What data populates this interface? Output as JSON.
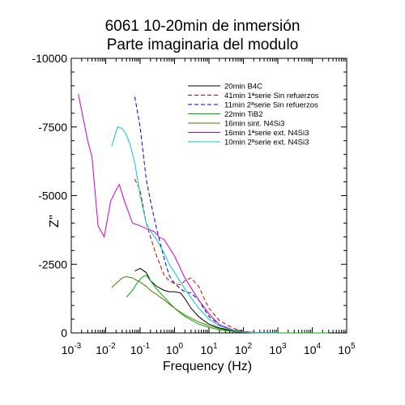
{
  "chart_data": {
    "type": "line",
    "title": "6061 10-20min de inmersión",
    "subtitle": "Parte imaginaria del modulo",
    "xlabel": "Frequency (Hz)",
    "ylabel": "Z''",
    "xscale": "log",
    "xlim": [
      0.001,
      100000
    ],
    "ylim": [
      0,
      -10000
    ],
    "yaxis_inverted": true,
    "x_ticks": [
      {
        "base": "10",
        "exp": "-3",
        "value": 0.001
      },
      {
        "base": "10",
        "exp": "-2",
        "value": 0.01
      },
      {
        "base": "10",
        "exp": "-1",
        "value": 0.1
      },
      {
        "base": "10",
        "exp": "0",
        "value": 1
      },
      {
        "base": "10",
        "exp": "1",
        "value": 10
      },
      {
        "base": "10",
        "exp": "2",
        "value": 100
      },
      {
        "base": "10",
        "exp": "3",
        "value": 1000
      },
      {
        "base": "10",
        "exp": "4",
        "value": 10000
      },
      {
        "base": "10",
        "exp": "5",
        "value": 100000
      }
    ],
    "y_ticks": [
      {
        "label": "-10000",
        "value": -10000
      },
      {
        "label": "-7500",
        "value": -7500
      },
      {
        "label": "-5000",
        "value": -5000
      },
      {
        "label": "-2500",
        "value": -2500
      },
      {
        "label": "0",
        "value": 0
      }
    ],
    "grid": false,
    "legend_position": "top-right",
    "series": [
      {
        "name": "20min B4C",
        "color": "#000000",
        "dash": "solid",
        "x": [
          0.07,
          0.1,
          0.15,
          0.2,
          0.3,
          0.5,
          0.7,
          1,
          1.5,
          2,
          3,
          5,
          7,
          10,
          20,
          50,
          100,
          200,
          500,
          1000
        ],
        "y": [
          -2250,
          -2350,
          -2200,
          -1900,
          -1700,
          -1550,
          -1500,
          -1500,
          -1450,
          -1250,
          -900,
          -600,
          -450,
          -320,
          -180,
          -80,
          -40,
          -15,
          -5,
          0
        ]
      },
      {
        "name": "41min 1ªserie Sin refuerzos",
        "color": "#cc0000",
        "dash": "dashed",
        "x": [
          0.07,
          0.1,
          0.15,
          0.2,
          0.3,
          0.5,
          0.7,
          1,
          1.5,
          2,
          3,
          5,
          7,
          10,
          20,
          50,
          100,
          200,
          500
        ],
        "y": [
          -5600,
          -5200,
          -4000,
          -3500,
          -2800,
          -2100,
          -1900,
          -1800,
          -1750,
          -1900,
          -2000,
          -1700,
          -1300,
          -900,
          -450,
          -170,
          -60,
          -20,
          0
        ]
      },
      {
        "name": "11min 2ªserie Sin refuerzos",
        "color": "#0000cc",
        "dash": "dashed",
        "x": [
          0.07,
          0.1,
          0.15,
          0.2,
          0.3,
          0.5,
          0.7,
          1,
          1.5,
          2,
          3,
          5,
          7,
          10,
          20,
          50,
          100,
          200,
          500
        ],
        "y": [
          -8600,
          -7500,
          -5600,
          -4800,
          -3800,
          -2700,
          -2100,
          -1800,
          -1600,
          -1500,
          -1450,
          -1200,
          -900,
          -600,
          -300,
          -110,
          -40,
          -10,
          0
        ]
      },
      {
        "name": "22min TiB2",
        "color": "#00aa00",
        "dash": "solid",
        "x": [
          0.04,
          0.06,
          0.08,
          0.1,
          0.12,
          0.15,
          0.2,
          0.3,
          0.5,
          0.7,
          1,
          2,
          5,
          10,
          20,
          50,
          100,
          200,
          500,
          1000,
          10000,
          30000
        ],
        "y": [
          -1300,
          -1550,
          -1800,
          -1950,
          -2050,
          -2100,
          -1900,
          -1600,
          -1300,
          -1100,
          -900,
          -600,
          -320,
          -200,
          -110,
          -50,
          -20,
          -10,
          -5,
          0,
          0,
          0
        ]
      },
      {
        "name": "16min sint. N4Si3",
        "color": "#557700",
        "dash": "solid",
        "x": [
          0.015,
          0.02,
          0.03,
          0.04,
          0.06,
          0.1,
          0.15,
          0.2,
          0.3,
          0.5,
          0.7,
          1,
          2,
          5,
          10,
          20,
          50,
          100,
          200,
          500
        ],
        "y": [
          -1650,
          -1800,
          -2000,
          -2050,
          -2000,
          -1850,
          -1700,
          -1550,
          -1400,
          -1200,
          -1050,
          -900,
          -650,
          -400,
          -260,
          -150,
          -60,
          -25,
          -10,
          0
        ]
      },
      {
        "name": "16min 1ªserie ext. N4Si3",
        "color": "#cc00cc",
        "dash": "solid",
        "x": [
          0.0016,
          0.003,
          0.004,
          0.006,
          0.009,
          0.014,
          0.02,
          0.025,
          0.035,
          0.06,
          0.1,
          0.15,
          0.25,
          0.35,
          0.5,
          1,
          2,
          5,
          10,
          20,
          50,
          100,
          200,
          500
        ],
        "y": [
          -8700,
          -7000,
          -6400,
          -3900,
          -3500,
          -4800,
          -5200,
          -5400,
          -4800,
          -4000,
          -3900,
          -3800,
          -3700,
          -3500,
          -3400,
          -2800,
          -2000,
          -1200,
          -700,
          -300,
          -100,
          -40,
          -10,
          0
        ]
      },
      {
        "name": "10min 2ªserie ext. N4Si3",
        "color": "#00cccc",
        "dash": "solid",
        "x": [
          0.015,
          0.022,
          0.03,
          0.04,
          0.05,
          0.07,
          0.1,
          0.15,
          0.2,
          0.3,
          0.5,
          0.7,
          1,
          2,
          5,
          10,
          20,
          50,
          100,
          200,
          500,
          1000
        ],
        "y": [
          -6800,
          -7500,
          -7450,
          -7200,
          -6900,
          -6200,
          -5000,
          -4000,
          -3700,
          -3400,
          -2900,
          -2500,
          -2200,
          -1600,
          -900,
          -500,
          -250,
          -90,
          -35,
          -12,
          -4,
          0
        ]
      }
    ]
  }
}
